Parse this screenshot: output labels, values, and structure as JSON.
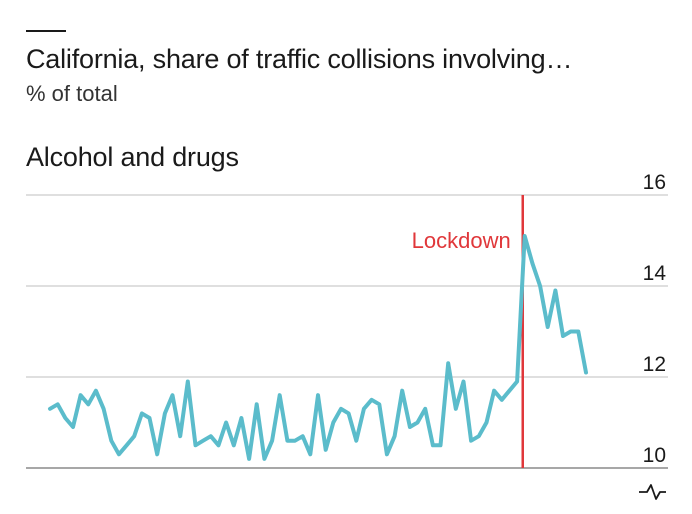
{
  "title": "California, share of traffic collisions involving…",
  "subtitle": "% of total",
  "panel_title": "Alcohol and drugs",
  "annotation": "Lockdown",
  "colors": {
    "line": "#5bbccb",
    "lockdown": "#e0373a",
    "grid": "#bfbfbf",
    "baseline": "#8a8a8a",
    "text": "#1a1a1a"
  },
  "icon": "axis-break-icon",
  "chart_data": {
    "type": "line",
    "title": "Alcohol and drugs",
    "ylabel": "% of total",
    "ylim": [
      10,
      16
    ],
    "yticks": [
      10,
      12,
      14,
      16
    ],
    "grid": true,
    "axis_side": "right",
    "lockdown_label": "Lockdown",
    "lockdown_x": 62,
    "series": [
      {
        "x": [
          0,
          1,
          2,
          3,
          4,
          5,
          6,
          7,
          8,
          9,
          10,
          11,
          12,
          13,
          14,
          15,
          16,
          17,
          18,
          19,
          20,
          21,
          22,
          23,
          24,
          25,
          26,
          27,
          28,
          29,
          30,
          31,
          32,
          33,
          34,
          35,
          36,
          37,
          38,
          39,
          40,
          41,
          42,
          43,
          44,
          45,
          46,
          47,
          48,
          49,
          50,
          51,
          52,
          53,
          54,
          55,
          56,
          57,
          58,
          59,
          60,
          61,
          62,
          63,
          64,
          65,
          66,
          67,
          68,
          69,
          70
        ],
        "values": [
          11.3,
          11.4,
          11.1,
          10.9,
          11.6,
          11.4,
          11.7,
          11.3,
          10.6,
          10.3,
          10.5,
          10.7,
          11.2,
          11.1,
          10.3,
          11.2,
          11.6,
          10.7,
          11.9,
          10.5,
          10.6,
          10.7,
          10.5,
          11.0,
          10.5,
          11.1,
          10.2,
          11.4,
          10.2,
          10.6,
          11.6,
          10.6,
          10.6,
          10.7,
          10.3,
          11.6,
          10.4,
          11.0,
          11.3,
          11.2,
          10.6,
          11.3,
          11.5,
          11.4,
          10.3,
          10.7,
          11.7,
          10.9,
          11.0,
          11.3,
          10.5,
          10.5,
          12.3,
          11.3,
          11.9,
          10.6,
          10.7,
          11.0,
          11.7,
          11.5,
          11.7,
          11.9,
          15.1,
          14.5,
          14.0,
          13.1,
          13.9,
          12.9,
          13.0,
          13.0,
          12.1
        ]
      }
    ]
  }
}
